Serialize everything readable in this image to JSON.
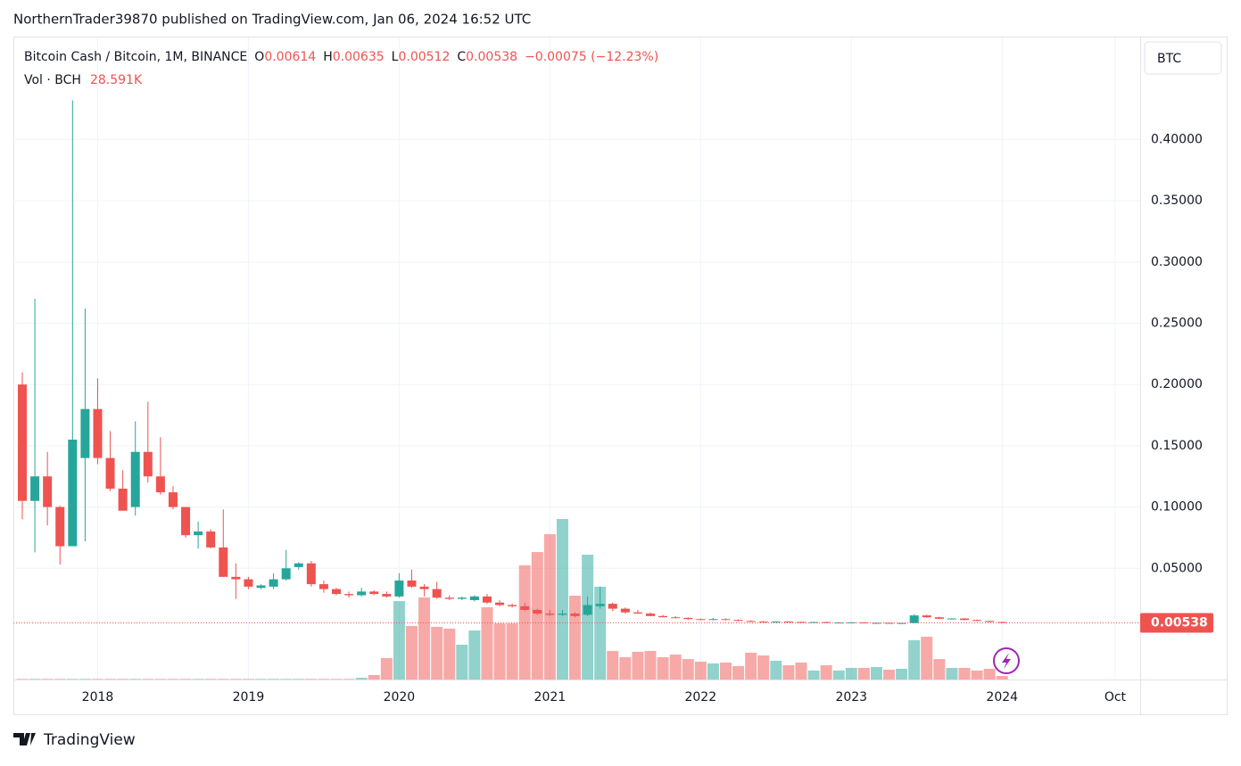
{
  "header": {
    "publisher": "NorthernTrader39870 published on TradingView.com, Jan 06, 2024 16:52 UTC",
    "brand": "TradingView",
    "currency_button": "BTC"
  },
  "chart_data": {
    "type": "candlestick",
    "symbol": "Bitcoin Cash / Bitcoin, 1M, BINANCE",
    "o_label": "O",
    "h_label": "H",
    "l_label": "L",
    "c_label": "C",
    "change": "−0.00075 (−12.23%)",
    "volume_title": "Vol · BCH",
    "volume_last_label": "28.591K",
    "up_color": "#26a69a",
    "down_color": "#ef5350",
    "categories": [
      null,
      null,
      null,
      null,
      null,
      null,
      "2018",
      null,
      null,
      null,
      null,
      null,
      null,
      null,
      null,
      null,
      null,
      null,
      "2019",
      null,
      null,
      null,
      null,
      null,
      null,
      null,
      null,
      null,
      null,
      null,
      "2020",
      null,
      null,
      null,
      null,
      null,
      null,
      null,
      null,
      null,
      null,
      null,
      "2021",
      null,
      null,
      null,
      null,
      null,
      null,
      null,
      null,
      null,
      null,
      null,
      "2022",
      null,
      null,
      null,
      null,
      null,
      null,
      null,
      null,
      null,
      null,
      null,
      "2023",
      null,
      null,
      null,
      null,
      null,
      null,
      null,
      null,
      null,
      null,
      null,
      "2024",
      null,
      null,
      null,
      null,
      null,
      null,
      null,
      null,
      "Oct"
    ],
    "open": [
      0.2,
      0.105,
      0.125,
      0.1,
      0.068,
      0.14,
      0.18,
      0.14,
      0.115,
      0.1,
      0.145,
      0.125,
      0.112,
      0.1,
      0.077,
      0.08,
      0.067,
      0.043,
      0.041,
      0.034,
      0.035,
      0.041,
      0.051,
      0.054,
      0.037,
      0.033,
      0.029,
      0.028,
      0.031,
      0.029,
      0.027,
      0.04,
      0.035,
      0.033,
      0.026,
      0.025,
      0.024,
      0.027,
      0.022,
      0.02,
      0.019,
      0.016,
      0.013,
      0.012,
      0.013,
      0.012,
      0.019,
      0.021,
      0.017,
      0.014,
      0.013,
      0.011,
      0.01,
      0.0095,
      0.0085,
      0.008,
      0.0085,
      0.0078,
      0.007,
      0.0065,
      0.0062,
      0.0065,
      0.0062,
      0.0058,
      0.0061,
      0.0055,
      0.0057,
      0.0058,
      0.0052,
      0.0054,
      0.0051,
      0.0053,
      0.0115,
      0.01,
      0.0088,
      0.009,
      0.0078,
      0.007,
      0.00614,
      null,
      null,
      null,
      null,
      null,
      null,
      null,
      null,
      null
    ],
    "high": [
      0.21,
      0.27,
      0.145,
      0.101,
      0.432,
      0.262,
      0.205,
      0.162,
      0.13,
      0.17,
      0.186,
      0.157,
      0.117,
      0.1,
      0.088,
      0.082,
      0.098,
      0.054,
      0.043,
      0.037,
      0.046,
      0.065,
      0.055,
      0.056,
      0.04,
      0.034,
      0.031,
      0.034,
      0.032,
      0.031,
      0.046,
      0.049,
      0.037,
      0.039,
      0.028,
      0.027,
      0.028,
      0.029,
      0.024,
      0.021,
      0.022,
      0.017,
      0.016,
      0.016,
      0.014,
      0.027,
      0.035,
      0.022,
      0.018,
      0.016,
      0.014,
      0.012,
      0.011,
      0.01,
      0.009,
      0.0095,
      0.009,
      0.0082,
      0.0075,
      0.007,
      0.0068,
      0.0068,
      0.0065,
      0.0063,
      0.0064,
      0.006,
      0.0062,
      0.006,
      0.0056,
      0.0058,
      0.0054,
      0.0125,
      0.012,
      0.0105,
      0.0095,
      0.0095,
      0.0082,
      0.0072,
      0.00635,
      null,
      null,
      null,
      null,
      null,
      null,
      null,
      null,
      null
    ],
    "low": [
      0.09,
      0.063,
      0.085,
      0.053,
      0.068,
      0.072,
      0.135,
      0.113,
      0.097,
      0.093,
      0.12,
      0.11,
      0.098,
      0.075,
      0.066,
      0.066,
      0.043,
      0.025,
      0.033,
      0.033,
      0.033,
      0.04,
      0.049,
      0.035,
      0.03,
      0.028,
      0.026,
      0.027,
      0.028,
      0.026,
      0.026,
      0.034,
      0.027,
      0.025,
      0.024,
      0.024,
      0.023,
      0.021,
      0.019,
      0.018,
      0.015,
      0.012,
      0.011,
      0.011,
      0.01,
      0.011,
      0.017,
      0.015,
      0.013,
      0.013,
      0.011,
      0.01,
      0.009,
      0.008,
      0.0075,
      0.0075,
      0.0075,
      0.0068,
      0.006,
      0.006,
      0.0058,
      0.006,
      0.0055,
      0.0056,
      0.0052,
      0.0052,
      0.0053,
      0.005,
      0.0046,
      0.0049,
      0.0046,
      0.0052,
      0.0095,
      0.0085,
      0.0083,
      0.0075,
      0.0068,
      0.006,
      0.00512,
      null,
      null,
      null,
      null,
      null,
      null,
      null,
      null,
      null
    ],
    "close": [
      0.105,
      0.125,
      0.1,
      0.068,
      0.155,
      0.18,
      0.14,
      0.115,
      0.097,
      0.145,
      0.125,
      0.112,
      0.1,
      0.077,
      0.08,
      0.067,
      0.043,
      0.041,
      0.035,
      0.036,
      0.041,
      0.05,
      0.054,
      0.037,
      0.033,
      0.029,
      0.028,
      0.031,
      0.029,
      0.027,
      0.04,
      0.035,
      0.033,
      0.026,
      0.025,
      0.026,
      0.027,
      0.022,
      0.02,
      0.019,
      0.016,
      0.013,
      0.012,
      0.013,
      0.011,
      0.02,
      0.021,
      0.017,
      0.014,
      0.013,
      0.011,
      0.01,
      0.0095,
      0.0085,
      0.008,
      0.0085,
      0.0078,
      0.007,
      0.0065,
      0.0062,
      0.0065,
      0.0062,
      0.0058,
      0.0061,
      0.0055,
      0.0057,
      0.0058,
      0.0052,
      0.0054,
      0.0051,
      0.0053,
      0.0115,
      0.01,
      0.0088,
      0.009,
      0.0078,
      0.007,
      0.00614,
      0.00538,
      null,
      null,
      null,
      null,
      null,
      null,
      null,
      null,
      null
    ],
    "volume": [
      5000,
      5000,
      5000,
      5000,
      5000,
      5000,
      5000,
      5000,
      5000,
      5000,
      5000,
      5000,
      5000,
      5000,
      5000,
      5000,
      5000,
      5000,
      5000,
      5000,
      5000,
      5000,
      5000,
      5000,
      5000,
      5000,
      5000,
      14000,
      36000,
      172000,
      629000,
      429000,
      658000,
      422000,
      408000,
      279000,
      393000,
      579000,
      450000,
      450000,
      915000,
      1022000,
      1165000,
      1287000,
      672000,
      1001000,
      744000,
      229000,
      179000,
      222000,
      229000,
      179000,
      200000,
      164000,
      143000,
      129000,
      136000,
      107000,
      215000,
      193000,
      150000,
      114000,
      136000,
      72000,
      114000,
      72000,
      93000,
      93000,
      100000,
      79000,
      86000,
      315000,
      343000,
      164000,
      93000,
      93000,
      72000,
      86000,
      28591,
      null,
      null,
      null,
      null,
      null,
      null,
      null,
      null,
      null
    ],
    "volume_lim": [
      0,
      5148000
    ],
    "ylim": [
      -0.0408,
      0.4833
    ],
    "yticks": [
      {
        "value": 0.05,
        "label": "0.05000"
      },
      {
        "value": 0.1,
        "label": "0.10000"
      },
      {
        "value": 0.15,
        "label": "0.15000"
      },
      {
        "value": 0.2,
        "label": "0.20000"
      },
      {
        "value": 0.25,
        "label": "0.25000"
      },
      {
        "value": 0.3,
        "label": "0.30000"
      },
      {
        "value": 0.35,
        "label": "0.35000"
      },
      {
        "value": 0.4,
        "label": "0.40000"
      }
    ],
    "grid": true
  }
}
